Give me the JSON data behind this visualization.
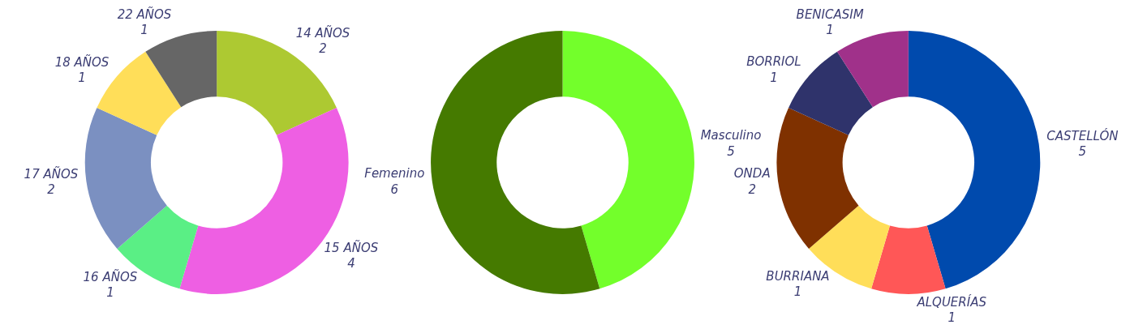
{
  "chart_data": [
    {
      "type": "donut",
      "categories": [
        "14 AÑOS",
        "15 AÑOS",
        "16 AÑOS",
        "17 AÑOS",
        "18 AÑOS",
        "22 AÑOS"
      ],
      "values": [
        2,
        4,
        1,
        2,
        1,
        1
      ],
      "colors": [
        "#adc932",
        "#ee5fe3",
        "#5aef85",
        "#7b90c1",
        "#ffde59",
        "#666666"
      ],
      "data_labels": true,
      "legend": false
    },
    {
      "type": "donut",
      "categories": [
        "Masculino",
        "Femenino"
      ],
      "values": [
        5,
        6
      ],
      "colors": [
        "#73ff2b",
        "#457a00"
      ],
      "data_labels": true,
      "legend": false
    },
    {
      "type": "donut",
      "categories": [
        "CASTELLÓN",
        "ALQUERÍAS",
        "BURRIANA",
        "ONDA",
        "BORRIOL",
        "BENICASIM"
      ],
      "values": [
        5,
        1,
        1,
        2,
        1,
        1
      ],
      "colors": [
        "#004aad",
        "#ff5757",
        "#ffde59",
        "#7f3100",
        "#2f336b",
        "#a0318a"
      ],
      "data_labels": true,
      "legend": false
    }
  ]
}
